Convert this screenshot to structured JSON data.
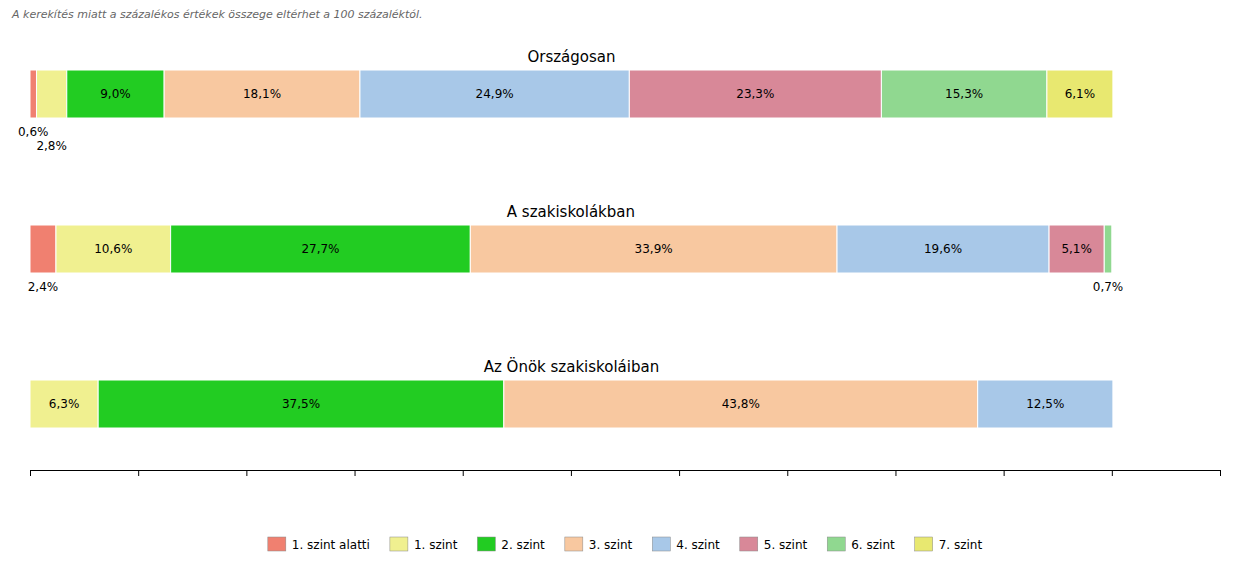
{
  "chart_data": {
    "type": "bar",
    "orientation": "horizontal",
    "stacked": true,
    "data_labels": true,
    "tick_labels": false,
    "grid": false,
    "annotations": [
      "A kerekítés miatt a százalékos értékek összege eltérhet a 100 százaléktól."
    ],
    "categories": [
      "Országosan",
      "A szakiskolákban",
      "Az Önök szakiskoláiban"
    ],
    "series": [
      {
        "name": "1. szint alatti",
        "color": "#F08070",
        "values": [
          0.6,
          2.4,
          0.0
        ],
        "value_labels": [
          "0,6%",
          "2,4%",
          null
        ]
      },
      {
        "name": "1. szint",
        "color": "#F0F090",
        "values": [
          2.8,
          10.6,
          6.3
        ],
        "value_labels": [
          "2,8%",
          "10,6%",
          "6,3%"
        ]
      },
      {
        "name": "2. szint",
        "color": "#22CC22",
        "values": [
          9.0,
          27.7,
          37.5
        ],
        "value_labels": [
          "9,0%",
          "27,7%",
          "37,5%"
        ]
      },
      {
        "name": "3. szint",
        "color": "#F8C8A0",
        "values": [
          18.1,
          33.9,
          43.8
        ],
        "value_labels": [
          "18,1%",
          "33,9%",
          "43,8%"
        ]
      },
      {
        "name": "4. szint",
        "color": "#A8C8E8",
        "values": [
          24.9,
          19.6,
          12.5
        ],
        "value_labels": [
          "24,9%",
          "19,6%",
          "12,5%"
        ]
      },
      {
        "name": "5. szint",
        "color": "#D88898",
        "values": [
          23.3,
          5.1,
          0.0
        ],
        "value_labels": [
          "23,3%",
          "5,1%",
          null
        ]
      },
      {
        "name": "6. szint",
        "color": "#90D890",
        "values": [
          15.3,
          0.7,
          0.0
        ],
        "value_labels": [
          "15,3%",
          "0,7%",
          null
        ]
      },
      {
        "name": "7. szint",
        "color": "#E8E870",
        "values": [
          6.1,
          0.0,
          0.0
        ],
        "value_labels": [
          "6,1%",
          null,
          null
        ]
      }
    ],
    "xlim": [
      0,
      110
    ],
    "xticks": [
      0,
      10,
      20,
      30,
      40,
      50,
      60,
      70,
      80,
      90,
      100,
      110
    ]
  }
}
